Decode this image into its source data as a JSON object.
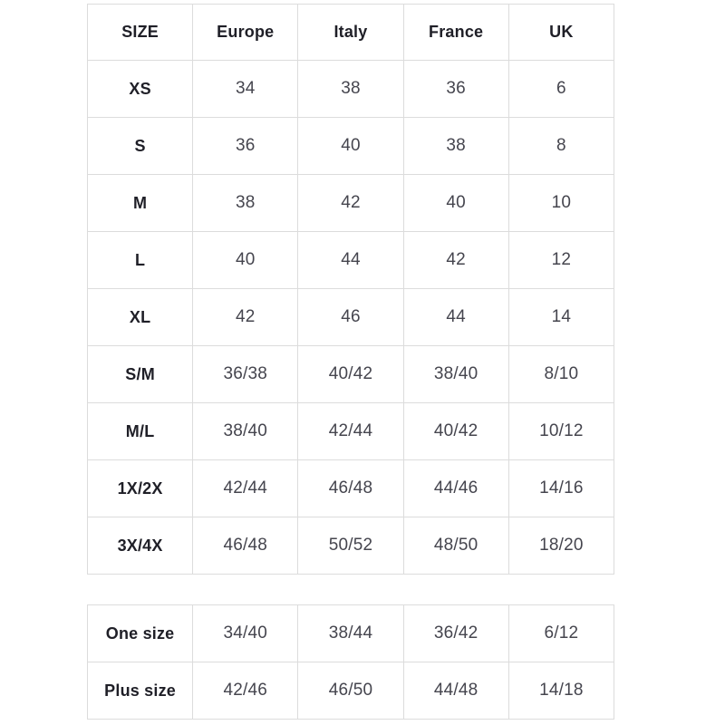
{
  "colors": {
    "background": "#ffffff",
    "border": "#dcdcdc",
    "header_text": "#1f1f27",
    "data_text": "#45454e"
  },
  "tables": {
    "main": {
      "headers": [
        "SIZE",
        "Europe",
        "Italy",
        "France",
        "UK"
      ],
      "rows": [
        {
          "label": "XS",
          "values": [
            "34",
            "38",
            "36",
            "6"
          ]
        },
        {
          "label": "S",
          "values": [
            "36",
            "40",
            "38",
            "8"
          ]
        },
        {
          "label": "M",
          "values": [
            "38",
            "42",
            "40",
            "10"
          ]
        },
        {
          "label": "L",
          "values": [
            "40",
            "44",
            "42",
            "12"
          ]
        },
        {
          "label": "XL",
          "values": [
            "42",
            "46",
            "44",
            "14"
          ]
        },
        {
          "label": "S/M",
          "values": [
            "36/38",
            "40/42",
            "38/40",
            "8/10"
          ]
        },
        {
          "label": "M/L",
          "values": [
            "38/40",
            "42/44",
            "40/42",
            "10/12"
          ]
        },
        {
          "label": "1X/2X",
          "values": [
            "42/44",
            "46/48",
            "44/46",
            "14/16"
          ]
        },
        {
          "label": "3X/4X",
          "values": [
            "46/48",
            "50/52",
            "48/50",
            "18/20"
          ]
        }
      ]
    },
    "special": {
      "rows": [
        {
          "label": "One size",
          "values": [
            "34/40",
            "38/44",
            "36/42",
            "6/12"
          ]
        },
        {
          "label": "Plus size",
          "values": [
            "42/46",
            "46/50",
            "44/48",
            "14/18"
          ]
        }
      ]
    }
  }
}
